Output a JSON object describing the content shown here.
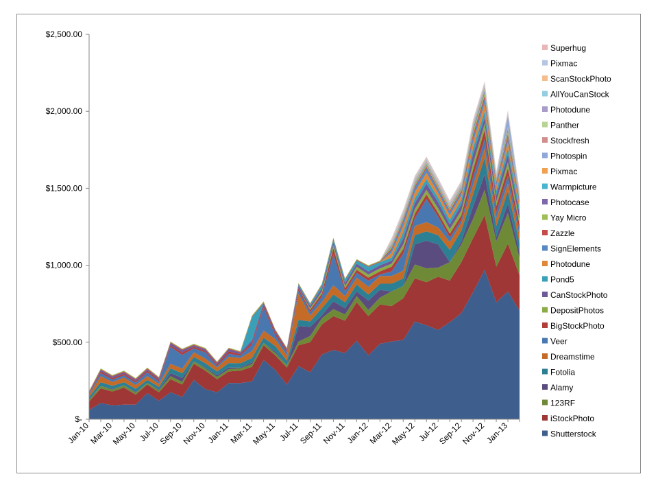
{
  "chart_data": {
    "type": "area",
    "stacked": true,
    "ylim": [
      0,
      2500
    ],
    "y_ticks": [
      {
        "value": 0,
        "label": "$-"
      },
      {
        "value": 500,
        "label": "$500.00"
      },
      {
        "value": 1000,
        "label": "$1,000.00"
      },
      {
        "value": 1500,
        "label": "$1,500.00"
      },
      {
        "value": 2000,
        "label": "$2,000.00"
      },
      {
        "value": 2500,
        "label": "$2,500.00"
      }
    ],
    "grid": false,
    "legend_position": "right",
    "x": [
      "Jan-10",
      "Feb-10",
      "Mar-10",
      "Apr-10",
      "May-10",
      "Jun-10",
      "Jul-10",
      "Aug-10",
      "Sep-10",
      "Oct-10",
      "Nov-10",
      "Dec-10",
      "Jan-11",
      "Feb-11",
      "Mar-11",
      "Apr-11",
      "May-11",
      "Jun-11",
      "Jul-11",
      "Aug-11",
      "Sep-11",
      "Oct-11",
      "Nov-11",
      "Dec-11",
      "Jan-12",
      "Feb-12",
      "Mar-12",
      "Apr-12",
      "May-12",
      "Jun-12",
      "Jul-12",
      "Aug-12",
      "Sep-12",
      "Oct-12",
      "Nov-12",
      "Dec-12",
      "Jan-13",
      "Feb-13"
    ],
    "x_tick_labels": [
      "Jan-10",
      "Mar-10",
      "May-10",
      "Jul-10",
      "Sep-10",
      "Nov-10",
      "Jan-11",
      "Mar-11",
      "May-11",
      "Jul-11",
      "Sep-11",
      "Nov-11",
      "Jan-12",
      "Mar-12",
      "May-12",
      "Jul-12",
      "Sep-12",
      "Nov-12",
      "Jan-13"
    ],
    "series": [
      {
        "name": "Shutterstock",
        "color": "#3e5f8e",
        "values": [
          60,
          105,
          90,
          95,
          95,
          170,
          120,
          175,
          145,
          255,
          195,
          175,
          235,
          235,
          245,
          385,
          320,
          225,
          345,
          305,
          420,
          450,
          430,
          510,
          415,
          490,
          505,
          515,
          635,
          610,
          580,
          630,
          690,
          825,
          970,
          760,
          830,
          705
        ]
      },
      {
        "name": "iStockPhoto",
        "color": "#9e3735",
        "values": [
          55,
          95,
          90,
          110,
          65,
          55,
          55,
          85,
          80,
          105,
          120,
          85,
          75,
          80,
          95,
          95,
          95,
          110,
          135,
          195,
          195,
          220,
          210,
          250,
          255,
          255,
          230,
          270,
          280,
          280,
          345,
          270,
          330,
          350,
          355,
          230,
          310,
          230
        ]
      },
      {
        "name": "123RF",
        "color": "#6f8a37",
        "values": [
          10,
          15,
          12,
          15,
          12,
          10,
          12,
          20,
          18,
          15,
          15,
          15,
          15,
          15,
          18,
          15,
          15,
          15,
          25,
          40,
          40,
          45,
          40,
          40,
          40,
          45,
          95,
          80,
          90,
          90,
          60,
          120,
          115,
          125,
          165,
          165,
          200,
          110
        ]
      },
      {
        "name": "Alamy",
        "color": "#5a4c7e",
        "values": [
          5,
          0,
          5,
          0,
          5,
          0,
          5,
          20,
          25,
          0,
          5,
          10,
          10,
          5,
          10,
          0,
          10,
          0,
          100,
          60,
          20,
          50,
          40,
          30,
          60,
          50,
          0,
          0,
          130,
          180,
          150,
          0,
          20,
          80,
          100,
          30,
          60,
          40
        ]
      },
      {
        "name": "Fotolia",
        "color": "#2d7f93",
        "values": [
          15,
          25,
          20,
          20,
          20,
          20,
          18,
          30,
          30,
          30,
          28,
          25,
          30,
          28,
          30,
          35,
          35,
          30,
          40,
          35,
          45,
          45,
          40,
          45,
          40,
          40,
          50,
          50,
          60,
          60,
          60,
          80,
          70,
          80,
          110,
          70,
          80,
          60
        ]
      },
      {
        "name": "Dreamstime",
        "color": "#c46b28",
        "values": [
          15,
          40,
          25,
          30,
          25,
          25,
          20,
          30,
          30,
          30,
          30,
          25,
          40,
          35,
          45,
          45,
          45,
          35,
          170,
          40,
          40,
          60,
          40,
          45,
          50,
          50,
          50,
          50,
          60,
          60,
          50,
          50,
          50,
          60,
          60,
          50,
          50,
          50
        ]
      },
      {
        "name": "Veer",
        "color": "#4978b0",
        "values": [
          5,
          20,
          15,
          15,
          15,
          25,
          15,
          110,
          90,
          25,
          40,
          10,
          20,
          15,
          40,
          150,
          25,
          20,
          20,
          20,
          35,
          200,
          30,
          30,
          40,
          10,
          30,
          110,
          50,
          150,
          70,
          30,
          20,
          50,
          60,
          40,
          50,
          30
        ]
      },
      {
        "name": "BigStockPhoto",
        "color": "#b03e3b",
        "values": [
          5,
          10,
          10,
          10,
          10,
          10,
          10,
          10,
          15,
          10,
          10,
          10,
          15,
          10,
          15,
          15,
          15,
          10,
          15,
          15,
          20,
          40,
          20,
          20,
          20,
          20,
          30,
          30,
          30,
          30,
          25,
          25,
          30,
          50,
          60,
          40,
          50,
          40
        ]
      },
      {
        "name": "DepositPhotos",
        "color": "#8aab46",
        "values": [
          0,
          0,
          0,
          0,
          0,
          0,
          0,
          0,
          0,
          0,
          0,
          0,
          0,
          0,
          0,
          0,
          0,
          0,
          0,
          10,
          15,
          20,
          15,
          20,
          20,
          20,
          20,
          30,
          30,
          30,
          30,
          30,
          30,
          40,
          40,
          30,
          40,
          30
        ]
      },
      {
        "name": "CanStockPhoto",
        "color": "#6f5a99",
        "values": [
          5,
          10,
          10,
          10,
          10,
          10,
          10,
          15,
          15,
          10,
          10,
          10,
          15,
          10,
          15,
          15,
          15,
          10,
          15,
          15,
          20,
          20,
          20,
          20,
          20,
          20,
          20,
          40,
          40,
          40,
          40,
          30,
          40,
          60,
          40,
          40,
          50,
          40
        ]
      },
      {
        "name": "Pond5",
        "color": "#3aa0b8",
        "values": [
          0,
          0,
          0,
          0,
          0,
          0,
          0,
          0,
          0,
          0,
          0,
          0,
          0,
          0,
          150,
          0,
          0,
          0,
          10,
          10,
          20,
          20,
          20,
          20,
          30,
          20,
          20,
          40,
          30,
          30,
          30,
          30,
          30,
          40,
          40,
          30,
          40,
          30
        ]
      },
      {
        "name": "Photodune",
        "color": "#e0883a",
        "values": [
          0,
          0,
          0,
          0,
          0,
          0,
          0,
          0,
          0,
          0,
          0,
          0,
          0,
          0,
          0,
          0,
          0,
          0,
          0,
          0,
          0,
          0,
          0,
          0,
          0,
          0,
          30,
          40,
          40,
          40,
          30,
          30,
          30,
          40,
          50,
          30,
          40,
          30
        ]
      },
      {
        "name": "SignElements",
        "color": "#5889c4",
        "values": [
          0,
          0,
          0,
          0,
          0,
          0,
          0,
          0,
          0,
          0,
          0,
          0,
          0,
          0,
          0,
          0,
          0,
          0,
          0,
          0,
          0,
          0,
          0,
          0,
          0,
          0,
          20,
          30,
          30,
          30,
          20,
          20,
          20,
          30,
          30,
          20,
          30,
          20
        ]
      },
      {
        "name": "Zazzle",
        "color": "#c44b48",
        "values": [
          5,
          5,
          5,
          5,
          5,
          5,
          5,
          5,
          5,
          5,
          5,
          5,
          5,
          5,
          5,
          5,
          5,
          5,
          5,
          5,
          5,
          5,
          5,
          5,
          5,
          5,
          10,
          10,
          10,
          10,
          10,
          10,
          10,
          20,
          20,
          10,
          20,
          10
        ]
      },
      {
        "name": "Yay Micro",
        "color": "#9dbf56",
        "values": [
          5,
          5,
          5,
          5,
          5,
          5,
          5,
          5,
          5,
          5,
          5,
          5,
          5,
          5,
          5,
          5,
          5,
          5,
          5,
          5,
          5,
          5,
          5,
          5,
          5,
          5,
          10,
          10,
          10,
          10,
          10,
          10,
          10,
          20,
          20,
          10,
          20,
          10
        ]
      },
      {
        "name": "Photocase",
        "color": "#7f67ab",
        "values": [
          0,
          0,
          0,
          0,
          0,
          0,
          0,
          0,
          0,
          0,
          0,
          0,
          0,
          0,
          0,
          0,
          0,
          0,
          0,
          0,
          0,
          0,
          0,
          0,
          0,
          0,
          5,
          5,
          5,
          5,
          5,
          5,
          5,
          10,
          10,
          5,
          10,
          5
        ]
      },
      {
        "name": "Warmpicture",
        "color": "#48b4cf",
        "values": [
          0,
          0,
          0,
          0,
          0,
          0,
          0,
          0,
          0,
          0,
          0,
          0,
          0,
          0,
          0,
          0,
          0,
          0,
          0,
          0,
          0,
          0,
          0,
          0,
          0,
          0,
          5,
          5,
          5,
          5,
          5,
          5,
          5,
          10,
          10,
          5,
          10,
          5
        ]
      },
      {
        "name": "Pixmac",
        "color": "#f0a050",
        "values": [
          0,
          0,
          0,
          0,
          0,
          0,
          0,
          0,
          0,
          0,
          0,
          0,
          0,
          0,
          0,
          0,
          0,
          0,
          0,
          0,
          0,
          0,
          0,
          0,
          0,
          0,
          5,
          5,
          5,
          5,
          5,
          5,
          5,
          10,
          10,
          5,
          10,
          5
        ]
      },
      {
        "name": "Photospin",
        "color": "#8fa8d8",
        "values": [
          0,
          0,
          0,
          0,
          0,
          0,
          0,
          0,
          0,
          0,
          0,
          0,
          0,
          0,
          0,
          0,
          0,
          0,
          0,
          0,
          0,
          0,
          0,
          0,
          0,
          0,
          5,
          5,
          5,
          5,
          5,
          5,
          5,
          10,
          10,
          5,
          70,
          5
        ]
      },
      {
        "name": "Stockfresh",
        "color": "#d08f8d",
        "values": [
          0,
          0,
          0,
          0,
          0,
          0,
          0,
          0,
          0,
          0,
          0,
          0,
          0,
          0,
          0,
          0,
          0,
          0,
          0,
          0,
          0,
          0,
          0,
          0,
          0,
          0,
          5,
          5,
          5,
          5,
          5,
          5,
          5,
          5,
          5,
          5,
          5,
          5
        ]
      },
      {
        "name": "Panther",
        "color": "#b8d494",
        "values": [
          0,
          0,
          0,
          0,
          0,
          0,
          0,
          0,
          0,
          0,
          0,
          0,
          0,
          0,
          0,
          0,
          0,
          0,
          0,
          0,
          0,
          0,
          0,
          0,
          0,
          0,
          5,
          5,
          5,
          5,
          5,
          5,
          5,
          5,
          5,
          5,
          5,
          5
        ]
      },
      {
        "name": "Photodune",
        "color": "#a99cc8",
        "values": [
          0,
          0,
          0,
          0,
          0,
          0,
          0,
          0,
          0,
          0,
          0,
          0,
          0,
          0,
          0,
          0,
          0,
          0,
          0,
          0,
          0,
          0,
          0,
          0,
          0,
          0,
          5,
          5,
          5,
          5,
          5,
          5,
          5,
          5,
          5,
          5,
          5,
          5
        ]
      },
      {
        "name": "AllYouCanStock",
        "color": "#94cce0",
        "values": [
          0,
          0,
          0,
          0,
          0,
          0,
          0,
          0,
          0,
          0,
          0,
          0,
          0,
          0,
          0,
          0,
          0,
          0,
          0,
          0,
          0,
          0,
          0,
          0,
          0,
          0,
          5,
          5,
          5,
          5,
          5,
          5,
          5,
          5,
          5,
          5,
          5,
          5
        ]
      },
      {
        "name": "ScanStockPhoto",
        "color": "#f4bd8e",
        "values": [
          0,
          0,
          0,
          0,
          0,
          0,
          0,
          0,
          0,
          0,
          0,
          0,
          0,
          0,
          0,
          0,
          0,
          0,
          0,
          0,
          0,
          0,
          0,
          0,
          0,
          0,
          5,
          5,
          5,
          5,
          5,
          5,
          5,
          5,
          5,
          5,
          5,
          5
        ]
      },
      {
        "name": "Pixmac",
        "color": "#b5c5e4",
        "values": [
          0,
          0,
          0,
          0,
          0,
          0,
          0,
          0,
          0,
          0,
          0,
          0,
          0,
          0,
          0,
          0,
          0,
          0,
          0,
          0,
          0,
          0,
          0,
          0,
          0,
          0,
          5,
          5,
          5,
          5,
          5,
          5,
          5,
          5,
          5,
          5,
          5,
          5
        ]
      },
      {
        "name": "Superhug",
        "color": "#e7b6b5",
        "values": [
          0,
          0,
          0,
          0,
          0,
          0,
          0,
          0,
          0,
          0,
          0,
          0,
          0,
          0,
          0,
          0,
          0,
          0,
          0,
          0,
          0,
          0,
          0,
          0,
          0,
          0,
          5,
          5,
          5,
          5,
          5,
          5,
          5,
          5,
          5,
          5,
          5,
          5
        ]
      }
    ]
  }
}
